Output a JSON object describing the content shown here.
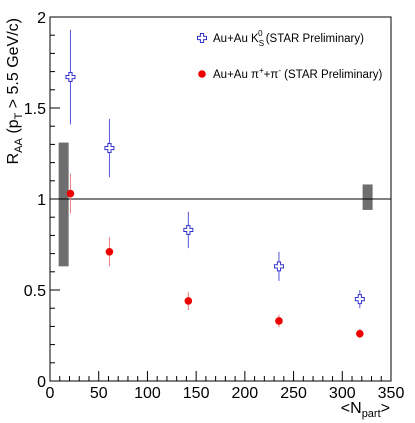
{
  "chart_data": {
    "type": "scatter",
    "xlabel": {
      "base": "<N",
      "sub": "part",
      "tail": ">"
    },
    "ylabel": {
      "base": "R",
      "sub1": "AA",
      "mid": " (p",
      "sub2": "T",
      "tail": " > 5.5 GeV/c)"
    },
    "xlim": [
      0,
      350
    ],
    "ylim": [
      0,
      2
    ],
    "x_ticks": [
      0,
      50,
      100,
      150,
      200,
      250,
      300,
      350
    ],
    "y_ticks": [
      0,
      0.5,
      1,
      1.5,
      2
    ],
    "x_tick_labels": [
      "0",
      "50",
      "100",
      "150",
      "200",
      "250",
      "300",
      "350"
    ],
    "y_tick_labels": [
      "0",
      "0.5",
      "1",
      "1.5",
      "2"
    ],
    "reference_line": 1,
    "series": [
      {
        "name": {
          "base": "Au+Au K",
          "sub": "S",
          "sup": "0",
          "tail": " (STAR Preliminary)"
        },
        "marker": "open-cross",
        "color": "#3333cc",
        "error_color": "#5555dd",
        "x": [
          21,
          61,
          142,
          235,
          318
        ],
        "y": [
          1.67,
          1.28,
          0.83,
          0.63,
          0.45
        ],
        "err": [
          0.26,
          0.16,
          0.1,
          0.08,
          0.05
        ]
      },
      {
        "name": {
          "base": "Au+Au π",
          "sup1": "+",
          "mid": "+π",
          "sup2": "-",
          "tail": " (STAR Preliminary)"
        },
        "marker": "filled-circle",
        "color": "#ee0000",
        "error_color": "#e88080",
        "x": [
          21,
          61,
          142,
          235,
          318
        ],
        "y": [
          1.03,
          0.71,
          0.44,
          0.33,
          0.26
        ],
        "err": [
          0.11,
          0.08,
          0.05,
          0.035,
          0.025
        ]
      }
    ],
    "systematic_bands": [
      {
        "x": 14,
        "y_low": 0.63,
        "y_high": 1.31
      },
      {
        "x": 326,
        "y_low": 0.94,
        "y_high": 1.08
      }
    ],
    "grid": false,
    "legend_position": "top-right"
  }
}
